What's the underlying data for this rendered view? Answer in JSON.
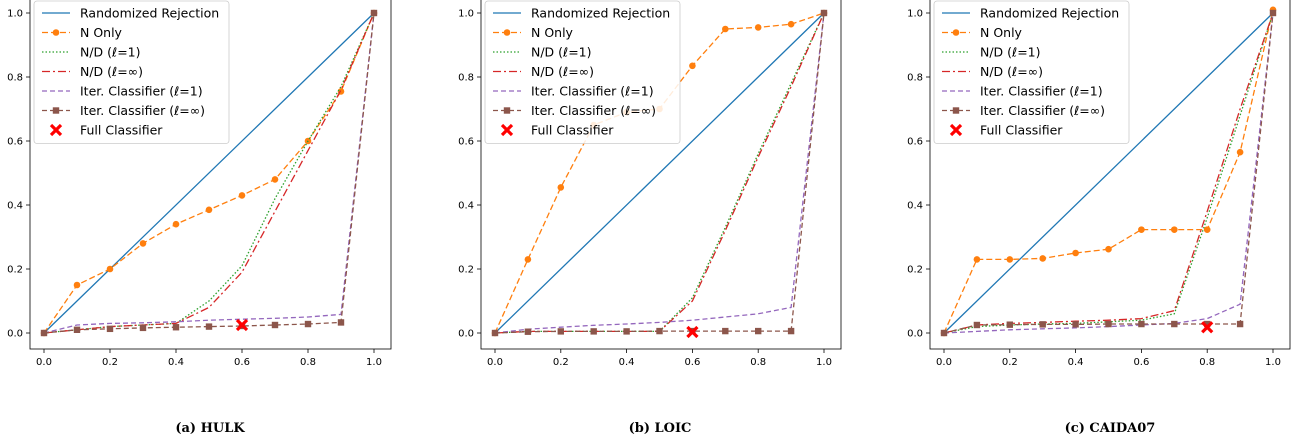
{
  "legend": [
    {
      "key": "random",
      "label": "Randomized Rejection",
      "color": "#1f77b4",
      "dash": "",
      "marker": "none"
    },
    {
      "key": "nonly",
      "label": "N Only",
      "color": "#ff7f0e",
      "dash": "6,3",
      "marker": "circle"
    },
    {
      "key": "nd1",
      "label": "N/D (ℓ=1)",
      "color": "#2ca02c",
      "dash": "1.5,2",
      "marker": "none"
    },
    {
      "key": "ndinf",
      "label": "N/D (ℓ=∞)",
      "color": "#d62728",
      "dash": "8,3,2,3",
      "marker": "none"
    },
    {
      "key": "ic1",
      "label": "Iter. Classifier (ℓ=1)",
      "color": "#9467bd",
      "dash": "5,3",
      "marker": "none"
    },
    {
      "key": "icinf",
      "label": "Iter. Classifier (ℓ=∞)",
      "color": "#8c564b",
      "dash": "5,3",
      "marker": "square"
    },
    {
      "key": "full",
      "label": "Full Classifier",
      "color": "#ff0000",
      "dash": "",
      "marker": "x"
    }
  ],
  "chart_data": [
    {
      "type": "line",
      "caption": "(a) HULK",
      "xlim": [
        0,
        1
      ],
      "ylim": [
        0,
        1
      ],
      "xticks": [
        "0.0",
        "0.2",
        "0.4",
        "0.6",
        "0.8",
        "1.0"
      ],
      "yticks": [
        "0.0",
        "0.2",
        "0.4",
        "0.6",
        "0.8",
        "1.0"
      ],
      "series": [
        {
          "name": "Randomized Rejection",
          "x": [
            0,
            1
          ],
          "y": [
            0,
            1
          ]
        },
        {
          "name": "N Only",
          "x": [
            0,
            0.1,
            0.2,
            0.3,
            0.4,
            0.5,
            0.6,
            0.7,
            0.8,
            0.9,
            1.0
          ],
          "y": [
            0,
            0.15,
            0.2,
            0.28,
            0.34,
            0.385,
            0.43,
            0.48,
            0.6,
            0.755,
            1.0
          ]
        },
        {
          "name": "N/D (ℓ=1)",
          "x": [
            0,
            0.1,
            0.2,
            0.3,
            0.4,
            0.5,
            0.6,
            0.7,
            0.8,
            0.9,
            1.0
          ],
          "y": [
            0,
            0.01,
            0.02,
            0.025,
            0.03,
            0.1,
            0.21,
            0.42,
            0.6,
            0.77,
            1.0
          ]
        },
        {
          "name": "N/D (ℓ=∞)",
          "x": [
            0,
            0.1,
            0.2,
            0.3,
            0.4,
            0.5,
            0.6,
            0.7,
            0.8,
            0.9,
            1.0
          ],
          "y": [
            0,
            0.01,
            0.02,
            0.025,
            0.03,
            0.08,
            0.19,
            0.38,
            0.57,
            0.76,
            1.0
          ]
        },
        {
          "name": "Iter. Classifier (ℓ=1)",
          "x": [
            0,
            0.1,
            0.2,
            0.3,
            0.4,
            0.5,
            0.6,
            0.7,
            0.8,
            0.9,
            1.0
          ],
          "y": [
            0,
            0.025,
            0.03,
            0.032,
            0.035,
            0.04,
            0.043,
            0.046,
            0.05,
            0.058,
            1.0
          ]
        },
        {
          "name": "Iter. Classifier (ℓ=∞)",
          "x": [
            0,
            0.1,
            0.2,
            0.3,
            0.4,
            0.5,
            0.6,
            0.7,
            0.8,
            0.9,
            1.0
          ],
          "y": [
            0,
            0.01,
            0.013,
            0.016,
            0.018,
            0.02,
            0.022,
            0.025,
            0.028,
            0.033,
            1.0
          ]
        },
        {
          "name": "Full Classifier",
          "x": [
            0.6
          ],
          "y": [
            0.025
          ]
        }
      ]
    },
    {
      "type": "line",
      "caption": "(b) LOIC",
      "xlim": [
        0,
        1
      ],
      "ylim": [
        0,
        1
      ],
      "xticks": [
        "0.0",
        "0.2",
        "0.4",
        "0.6",
        "0.8",
        "1.0"
      ],
      "yticks": [
        "0.0",
        "0.2",
        "0.4",
        "0.6",
        "0.8",
        "1.0"
      ],
      "series": [
        {
          "name": "Randomized Rejection",
          "x": [
            0,
            1
          ],
          "y": [
            0,
            1
          ]
        },
        {
          "name": "N Only",
          "x": [
            0,
            0.1,
            0.2,
            0.3,
            0.4,
            0.5,
            0.6,
            0.7,
            0.8,
            0.9,
            1.0
          ],
          "y": [
            0,
            0.23,
            0.455,
            0.65,
            0.69,
            0.7,
            0.835,
            0.95,
            0.955,
            0.965,
            1.0
          ]
        },
        {
          "name": "N/D (ℓ=1)",
          "x": [
            0,
            0.1,
            0.2,
            0.3,
            0.4,
            0.5,
            0.6,
            0.7,
            0.8,
            0.9,
            1.0
          ],
          "y": [
            0,
            0.005,
            0.005,
            0.005,
            0.005,
            0.005,
            0.11,
            0.33,
            0.56,
            0.78,
            1.0
          ]
        },
        {
          "name": "N/D (ℓ=∞)",
          "x": [
            0,
            0.1,
            0.2,
            0.3,
            0.4,
            0.5,
            0.6,
            0.7,
            0.8,
            0.9,
            1.0
          ],
          "y": [
            0,
            0.005,
            0.005,
            0.005,
            0.005,
            0.005,
            0.1,
            0.32,
            0.55,
            0.77,
            1.0
          ]
        },
        {
          "name": "Iter. Classifier (ℓ=1)",
          "x": [
            0,
            0.1,
            0.2,
            0.3,
            0.4,
            0.5,
            0.6,
            0.7,
            0.8,
            0.9,
            1.0
          ],
          "y": [
            0,
            0.012,
            0.018,
            0.024,
            0.028,
            0.033,
            0.04,
            0.05,
            0.06,
            0.08,
            1.0
          ]
        },
        {
          "name": "Iter. Classifier (ℓ=∞)",
          "x": [
            0,
            0.1,
            0.2,
            0.3,
            0.4,
            0.5,
            0.6,
            0.7,
            0.8,
            0.9,
            1.0
          ],
          "y": [
            0,
            0.004,
            0.005,
            0.005,
            0.005,
            0.006,
            0.006,
            0.006,
            0.006,
            0.006,
            1.0
          ]
        },
        {
          "name": "Full Classifier",
          "x": [
            0.6
          ],
          "y": [
            0.003
          ]
        }
      ]
    },
    {
      "type": "line",
      "caption": "(c) CAIDA07",
      "xlim": [
        0,
        1
      ],
      "ylim": [
        0,
        1
      ],
      "xticks": [
        "0.0",
        "0.2",
        "0.4",
        "0.6",
        "0.8",
        "1.0"
      ],
      "yticks": [
        "0.0",
        "0.2",
        "0.4",
        "0.6",
        "0.8",
        "1.0"
      ],
      "series": [
        {
          "name": "Randomized Rejection",
          "x": [
            0,
            1
          ],
          "y": [
            0,
            1
          ]
        },
        {
          "name": "N Only",
          "x": [
            0,
            0.1,
            0.2,
            0.3,
            0.4,
            0.5,
            0.6,
            0.7,
            0.8,
            0.9,
            1.0
          ],
          "y": [
            0,
            0.23,
            0.23,
            0.233,
            0.25,
            0.262,
            0.323,
            0.323,
            0.323,
            0.565,
            1.01
          ]
        },
        {
          "name": "N/D (ℓ=1)",
          "x": [
            0,
            0.1,
            0.2,
            0.3,
            0.4,
            0.5,
            0.6,
            0.7,
            0.8,
            0.9,
            1.0
          ],
          "y": [
            0,
            0.02,
            0.025,
            0.028,
            0.03,
            0.035,
            0.04,
            0.06,
            0.36,
            0.68,
            1.0
          ]
        },
        {
          "name": "N/D (ℓ=∞)",
          "x": [
            0,
            0.1,
            0.2,
            0.3,
            0.4,
            0.5,
            0.6,
            0.7,
            0.8,
            0.9,
            1.0
          ],
          "y": [
            0,
            0.025,
            0.03,
            0.033,
            0.037,
            0.04,
            0.045,
            0.07,
            0.38,
            0.7,
            1.0
          ]
        },
        {
          "name": "Iter. Classifier (ℓ=1)",
          "x": [
            0,
            0.1,
            0.2,
            0.3,
            0.4,
            0.5,
            0.6,
            0.7,
            0.8,
            0.9,
            1.0
          ],
          "y": [
            0,
            0.005,
            0.01,
            0.013,
            0.016,
            0.02,
            0.025,
            0.03,
            0.045,
            0.09,
            1.0
          ]
        },
        {
          "name": "Iter. Classifier (ℓ=∞)",
          "x": [
            0,
            0.1,
            0.2,
            0.3,
            0.4,
            0.5,
            0.6,
            0.7,
            0.8,
            0.9,
            1.0
          ],
          "y": [
            0,
            0.025,
            0.026,
            0.027,
            0.027,
            0.028,
            0.028,
            0.028,
            0.028,
            0.028,
            1.0
          ]
        },
        {
          "name": "Full Classifier",
          "x": [
            0.8
          ],
          "y": [
            0.018
          ]
        }
      ]
    }
  ]
}
